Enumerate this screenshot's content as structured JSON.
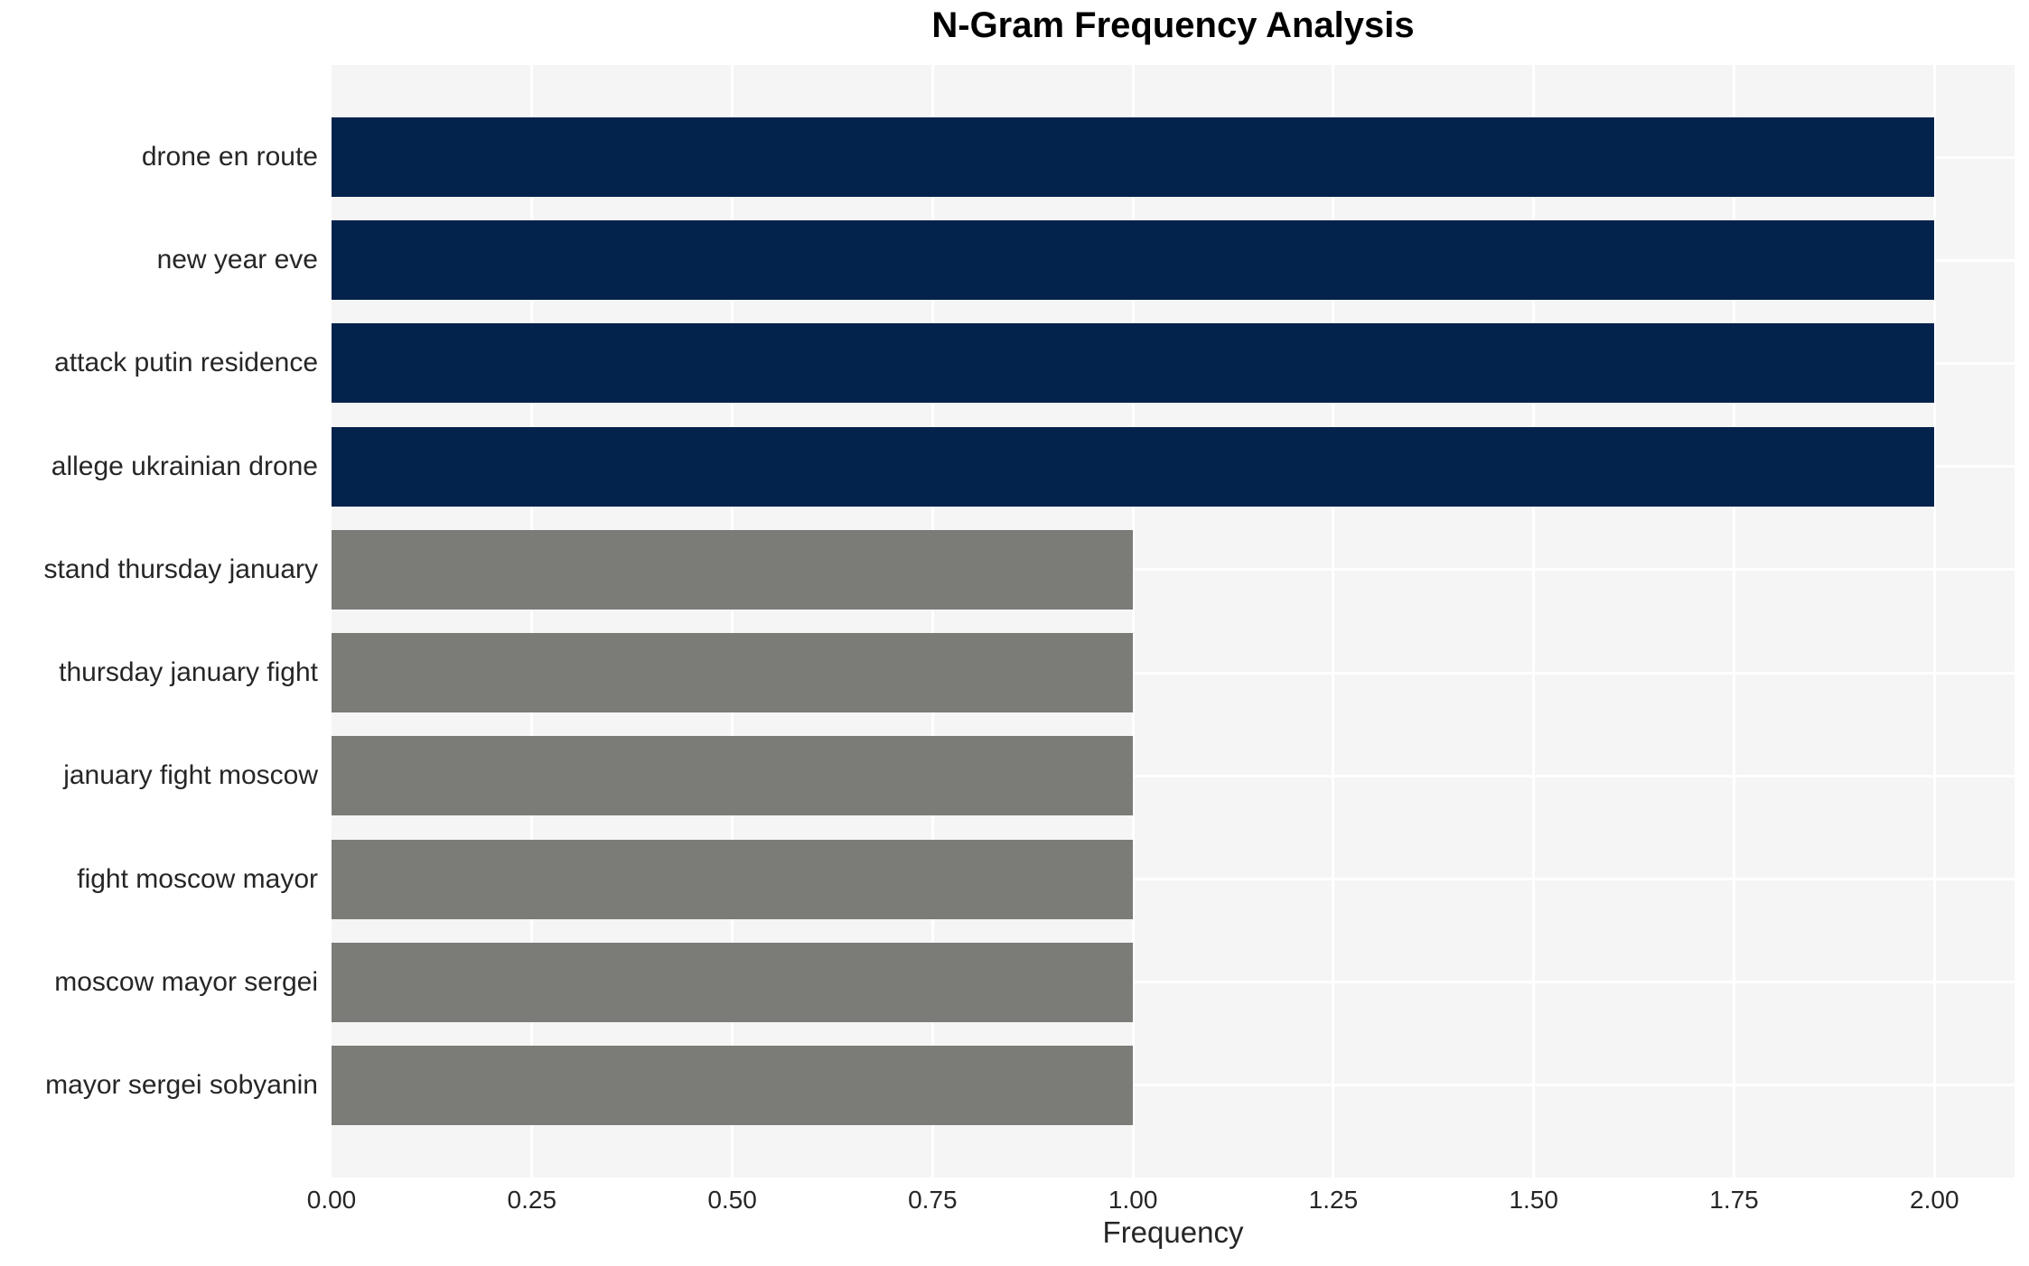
{
  "chart_data": {
    "type": "bar",
    "orientation": "horizontal",
    "title": "N-Gram Frequency Analysis",
    "xlabel": "Frequency",
    "ylabel": "",
    "categories": [
      "drone en route",
      "new year eve",
      "attack putin residence",
      "allege ukrainian drone",
      "stand thursday january",
      "thursday january fight",
      "january fight moscow",
      "fight moscow mayor",
      "moscow mayor sergei",
      "mayor sergei sobyanin"
    ],
    "values": [
      2,
      2,
      2,
      2,
      1,
      1,
      1,
      1,
      1,
      1
    ],
    "bar_colors": [
      "#03224c",
      "#03224c",
      "#03224c",
      "#03224c",
      "#7b7b78",
      "#7b7b78",
      "#7b7b78",
      "#7b7b78",
      "#7b7b78",
      "#7b7b78"
    ],
    "x_ticks": [
      {
        "value": 0.0,
        "label": "0.00"
      },
      {
        "value": 0.25,
        "label": "0.25"
      },
      {
        "value": 0.5,
        "label": "0.50"
      },
      {
        "value": 0.75,
        "label": "0.75"
      },
      {
        "value": 1.0,
        "label": "1.00"
      },
      {
        "value": 1.25,
        "label": "1.25"
      },
      {
        "value": 1.5,
        "label": "1.50"
      },
      {
        "value": 1.75,
        "label": "1.75"
      },
      {
        "value": 2.0,
        "label": "2.00"
      }
    ],
    "xlim": [
      0,
      2.1
    ],
    "grid": true,
    "legend": false,
    "colors": {
      "highlight_bar": "#03224c",
      "normal_bar": "#7b7b78",
      "plot_background": "#f5f5f5",
      "gridline": "#ffffff",
      "tick_text": "#262626",
      "title_text": "#000000",
      "figure_background": "#ffffff"
    }
  }
}
